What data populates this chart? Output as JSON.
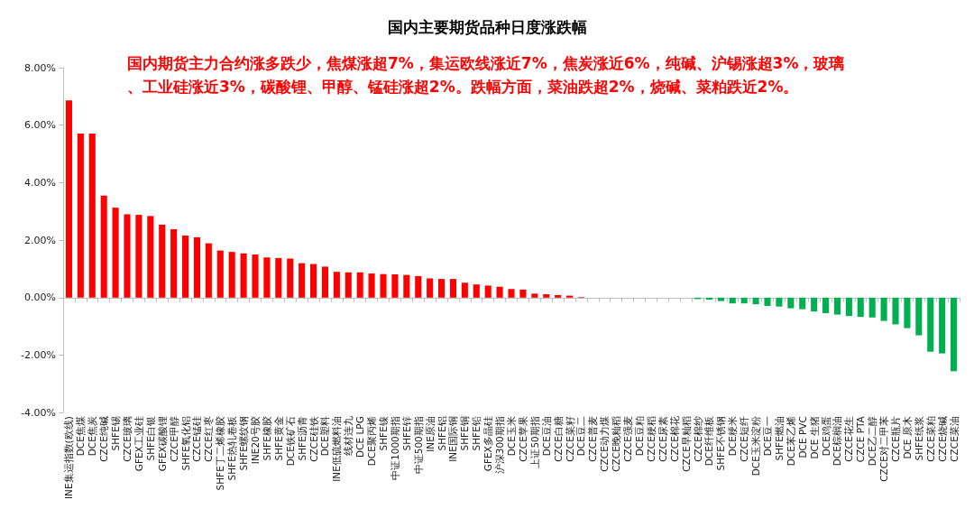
{
  "chart_data": {
    "type": "bar",
    "title": "国内主要期货品种日度涨跌幅",
    "subtitle": "国内期货主力合约涨多跌少，焦煤涨超7%，集运欧线涨近7%，焦炭涨近6%，纯碱、沪锡涨超3%，玻璃、工业硅涨近3%，碳酸锂、甲醇、锰硅涨超2%。跌幅方面，菜油跌超2%，烧碱、菜粕跌近2%。",
    "categories": [
      "INE集运指数(欧线)",
      "DCE焦煤",
      "DCE焦炭",
      "CZCE纯碱",
      "SHFE锡",
      "CZCE玻璃",
      "GFEX工业硅",
      "SHFE白银",
      "GFEX碳酸锂",
      "CZCE甲醇",
      "SHFE氧化铝",
      "CZCE锰硅",
      "CZCE红枣",
      "SHFE丁二烯橡胶",
      "SHFE热轧卷板",
      "SHFE螺纹钢",
      "INE20号胶",
      "SHFE橡胶",
      "SHFE黄金",
      "DCE铁矿石",
      "SHFE沥青",
      "CZCE硅铁",
      "DCE塑料",
      "INE低硫燃料油",
      "线材连九",
      "DCE LPG",
      "DCE聚丙烯",
      "SHFE镍",
      "中证1000期指",
      "SHFE锌",
      "中证500期指",
      "INE原油",
      "SHFE铝",
      "INE国际铜",
      "SHFE铜",
      "SHFE铅",
      "GFEX多晶硅",
      "沪深300期指",
      "DCE玉米",
      "CZCE苹果",
      "上证50期指",
      "DCE豆油",
      "CZCE白糖",
      "CZCE菜籽",
      "DCE豆二",
      "CZCE普麦",
      "CZCE动力煤",
      "CZCE晚籼稻",
      "CZCE强麦",
      "DCE豆粕",
      "CZCE粳稻",
      "CZCE尿素",
      "CZCE棉花",
      "CZCE早籼稻",
      "CZCE棉纱",
      "DCE纤维板",
      "SHFE不锈钢",
      "DCE粳米",
      "CZCE短纤",
      "DCE玉米淀粉",
      "DCE豆一",
      "SHFE燃油",
      "DCE苯乙烯",
      "DCE PVC",
      "DCE 生猪",
      "DCE鸡蛋",
      "DCE棕榈油",
      "CZCE花生",
      "CZCE PTA",
      "DCE乙二醇",
      "CZCE对二甲苯",
      "CZCE瓶片",
      "DCE 原木",
      "SHFE纸浆",
      "CZCE菜粕",
      "CZCE烧碱",
      "CZCE菜油"
    ],
    "values": [
      6.86,
      5.71,
      5.71,
      3.55,
      3.13,
      2.9,
      2.88,
      2.84,
      2.54,
      2.38,
      2.16,
      2.1,
      1.89,
      1.64,
      1.59,
      1.54,
      1.5,
      1.4,
      1.38,
      1.36,
      1.2,
      1.17,
      1.08,
      0.9,
      0.88,
      0.88,
      0.84,
      0.82,
      0.81,
      0.79,
      0.75,
      0.67,
      0.65,
      0.65,
      0.52,
      0.46,
      0.42,
      0.38,
      0.3,
      0.28,
      0.14,
      0.12,
      0.09,
      0.07,
      0.02,
      0,
      0,
      0,
      0,
      0,
      0,
      0,
      0,
      0,
      -0.05,
      -0.07,
      -0.12,
      -0.2,
      -0.2,
      -0.23,
      -0.29,
      -0.31,
      -0.37,
      -0.4,
      -0.48,
      -0.54,
      -0.59,
      -0.64,
      -0.67,
      -0.69,
      -0.81,
      -0.93,
      -1.06,
      -1.31,
      -1.88,
      -1.94,
      -2.56
    ],
    "colors": [
      "#ff0000",
      "#ff0000",
      "#ff0000",
      "#ff0000",
      "#ff0000",
      "#ff0000",
      "#ff0000",
      "#ff0000",
      "#ff0000",
      "#ff0000",
      "#ff0000",
      "#ff0000",
      "#ff0000",
      "#ff0000",
      "#ff0000",
      "#ff0000",
      "#ff0000",
      "#ff0000",
      "#ff0000",
      "#ff0000",
      "#ff0000",
      "#ff0000",
      "#ff0000",
      "#ff0000",
      "#ff0000",
      "#ff0000",
      "#ff0000",
      "#ff0000",
      "#ff0000",
      "#ff0000",
      "#ff0000",
      "#ff0000",
      "#ff0000",
      "#ff0000",
      "#ff0000",
      "#ff0000",
      "#ff0000",
      "#ff0000",
      "#ff0000",
      "#ff0000",
      "#ff0000",
      "#ff0000",
      "#ff0000",
      "#ff0000",
      "#ff0000",
      "#ff0000",
      "#ff0000",
      "#ff0000",
      "#ff0000",
      "#ff0000",
      "#ff0000",
      "#ff0000",
      "#ff0000",
      "#ff0000",
      "#00b050",
      "#00b050",
      "#00b050",
      "#00b050",
      "#00b050",
      "#00b050",
      "#00b050",
      "#00b050",
      "#00b050",
      "#00b050",
      "#00b050",
      "#00b050",
      "#00b050",
      "#00b050",
      "#00b050",
      "#00b050",
      "#00b050",
      "#00b050",
      "#00b050",
      "#00b050",
      "#00b050",
      "#00b050",
      "#00b050"
    ],
    "ylim": [
      -4,
      8
    ],
    "yticks": [
      {
        "value": -4,
        "label": "-4.00%"
      },
      {
        "value": -2,
        "label": "-2.00%"
      },
      {
        "value": 0,
        "label": "0.00%"
      },
      {
        "value": 2,
        "label": "2.00%"
      },
      {
        "value": 4,
        "label": "4.00%"
      },
      {
        "value": 6,
        "label": "6.00%"
      },
      {
        "value": 8,
        "label": "8.00%"
      }
    ]
  }
}
